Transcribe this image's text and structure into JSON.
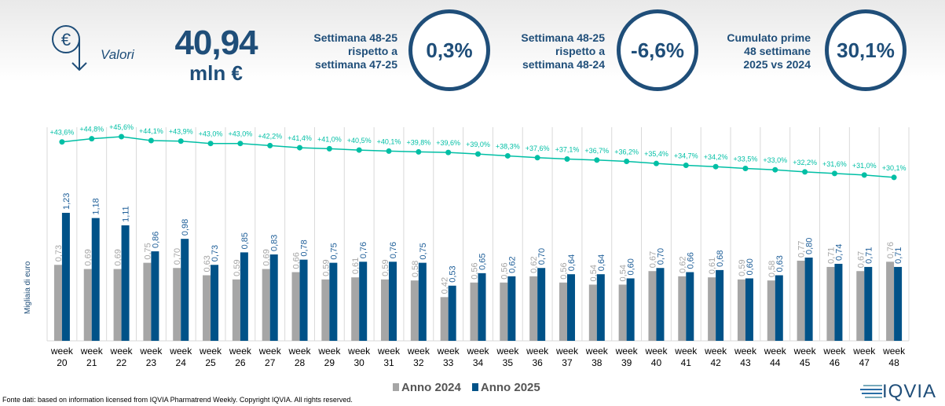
{
  "header": {
    "icon": "euro-down-arrow-icon",
    "valori_label": "Valori",
    "total_value": "40,94",
    "total_unit": "mln €",
    "kpis": [
      {
        "label_lines": [
          "Settimana 48-25",
          "rispetto a",
          "settimana 47-25"
        ],
        "value": "0,3%"
      },
      {
        "label_lines": [
          "Settimana 48-25",
          "rispetto a",
          "settimana 48-24"
        ],
        "value": "-6,6%"
      },
      {
        "label_lines": [
          "Cumulato prime",
          "48 settimane",
          "2025 vs 2024"
        ],
        "value": "30,1%"
      }
    ]
  },
  "chart_data": {
    "type": "bar",
    "ylabel": "Migliaia di euro",
    "categories": [
      "week 20",
      "week 21",
      "week 22",
      "week 23",
      "week 24",
      "week 25",
      "week 26",
      "week 27",
      "week 28",
      "week 29",
      "week 30",
      "week 31",
      "week 32",
      "week 33",
      "week 34",
      "week 35",
      "week 36",
      "week 37",
      "week 38",
      "week 39",
      "week 40",
      "week 41",
      "week 42",
      "week 43",
      "week 44",
      "week 45",
      "week 46",
      "week 47",
      "week 48"
    ],
    "series": [
      {
        "name": "Anno 2024",
        "color": "#a6a6a6",
        "values": [
          0.73,
          0.69,
          0.69,
          0.75,
          0.7,
          0.63,
          0.59,
          0.69,
          0.66,
          0.59,
          0.61,
          0.59,
          0.58,
          0.42,
          0.56,
          0.56,
          0.62,
          0.56,
          0.54,
          0.54,
          0.67,
          0.62,
          0.61,
          0.59,
          0.58,
          0.77,
          0.71,
          0.67,
          0.76
        ]
      },
      {
        "name": "Anno 2025",
        "color": "#005288",
        "values": [
          1.23,
          1.18,
          1.11,
          0.86,
          0.98,
          0.73,
          0.85,
          0.83,
          0.78,
          0.75,
          0.76,
          0.76,
          0.75,
          0.53,
          0.65,
          0.62,
          0.7,
          0.64,
          0.64,
          0.6,
          0.7,
          0.66,
          0.68,
          0.6,
          0.63,
          0.8,
          0.74,
          0.71,
          0.71
        ]
      }
    ],
    "line": {
      "type": "line",
      "color": "#00bfa5",
      "values": [
        43.6,
        44.8,
        45.6,
        44.1,
        43.9,
        43.0,
        43.0,
        42.2,
        41.4,
        41.0,
        40.5,
        40.1,
        39.8,
        39.6,
        39.0,
        38.3,
        37.6,
        37.1,
        36.7,
        36.2,
        35.4,
        34.7,
        34.2,
        33.5,
        33.0,
        32.2,
        31.6,
        31.0,
        30.1
      ]
    },
    "legend_position": "bottom"
  },
  "footer": {
    "source": "Fonte dati: based on information licensed from IQVIA Pharmatrend Weekly. Copyright IQVIA. All rights reserved.",
    "logo_text": "IQVIA"
  }
}
